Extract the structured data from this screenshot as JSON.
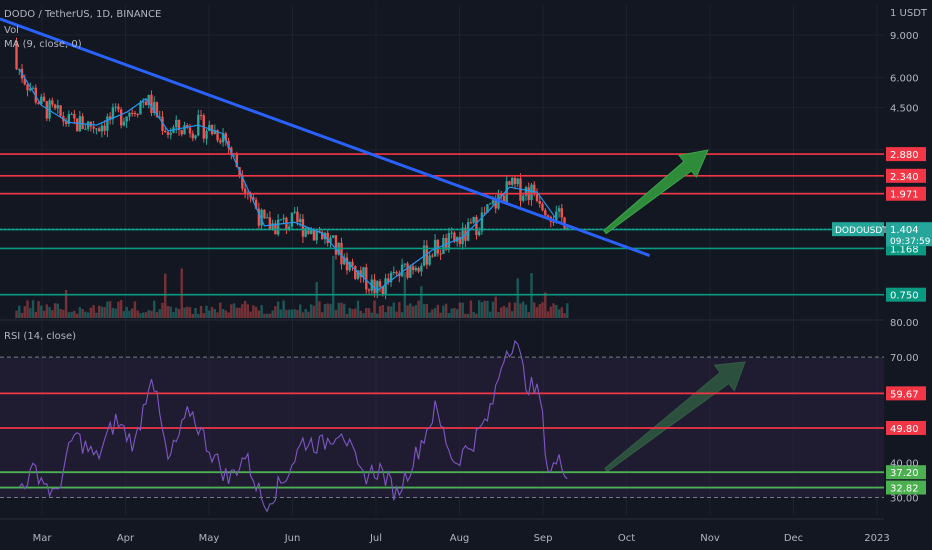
{
  "header": {
    "symbol_line": "DODO / TetherUS, 1D, BINANCE",
    "vol_label": "Vol",
    "ma_label": "MA (9, close, 0)",
    "rsi_label": "RSI (14, close)"
  },
  "price_axis": {
    "unit_label": "1 USDT",
    "ticks": [
      "9.000",
      "6.000",
      "4.500"
    ]
  },
  "price_levels": [
    {
      "value": "2.880",
      "color": "#f23645"
    },
    {
      "value": "2.340",
      "color": "#f23645"
    },
    {
      "value": "1.971",
      "color": "#f23645"
    },
    {
      "value": "1.399",
      "color": "#089981"
    },
    {
      "value": "1.168",
      "color": "#089981"
    },
    {
      "value": "0.750",
      "color": "#089981"
    }
  ],
  "current_price": {
    "ticker": "DODOUSDT",
    "price": "1.404",
    "countdown": "09:37:59",
    "color": "#26a69a"
  },
  "rsi_axis": {
    "ticks": [
      "80.00",
      "70.00",
      "40.00",
      "30.00"
    ]
  },
  "rsi_levels": [
    {
      "value": "59.67",
      "color": "#f23645"
    },
    {
      "value": "49.80",
      "color": "#f23645"
    },
    {
      "value": "37.20",
      "color": "#4caf50"
    },
    {
      "value": "32.82",
      "color": "#4caf50"
    }
  ],
  "time_axis": {
    "labels": [
      "Mar",
      "Apr",
      "May",
      "Jun",
      "Jul",
      "Aug",
      "Sep",
      "Oct",
      "Nov",
      "Dec",
      "2023"
    ]
  },
  "colors": {
    "background": "#131722",
    "up": "#26a69a",
    "down": "#ef5350",
    "ma": "#2196f3",
    "trendline": "#2962ff",
    "rsi_line": "#7e57c2",
    "rsi_band": "#2a2140",
    "arrow": "#2e8b3a",
    "grid": "#1e222d"
  },
  "chart_data": [
    {
      "type": "candlestick",
      "title": "DODO / TetherUS, 1D, BINANCE",
      "scale": "log",
      "ylim": [
        0.6,
        12
      ],
      "x_range": [
        "2022-02-18",
        "2023-01-05"
      ],
      "series": [
        {
          "name": "MA (9, close, 0)",
          "x": [
            "2022-02-25",
            "2022-03-05",
            "2022-03-15",
            "2022-03-25",
            "2022-04-05",
            "2022-04-12",
            "2022-04-20",
            "2022-05-01",
            "2022-05-10",
            "2022-05-15",
            "2022-05-25",
            "2022-06-05",
            "2022-06-15",
            "2022-06-25",
            "2022-07-05",
            "2022-07-15",
            "2022-07-25",
            "2022-08-05",
            "2022-08-15",
            "2022-08-22",
            "2022-09-01",
            "2022-09-08"
          ],
          "values": [
            6.5,
            4.6,
            3.9,
            3.8,
            4.3,
            4.9,
            3.6,
            3.8,
            3.5,
            2.6,
            1.45,
            1.5,
            1.35,
            1.0,
            0.78,
            0.95,
            1.15,
            1.3,
            1.7,
            2.1,
            2.0,
            1.55
          ]
        },
        {
          "name": "Trendline",
          "x": [
            "2022-02-18",
            "2022-10-01"
          ],
          "values": [
            10.5,
            1.05
          ]
        }
      ],
      "levels": [
        2.88,
        2.34,
        1.971,
        1.399,
        1.168,
        0.75
      ],
      "last_price": 1.404
    },
    {
      "type": "line",
      "title": "RSI (14, close)",
      "ylim": [
        25,
        80
      ],
      "x": [
        "2022-02-25",
        "2022-03-03",
        "2022-03-10",
        "2022-03-17",
        "2022-03-25",
        "2022-04-01",
        "2022-04-08",
        "2022-04-14",
        "2022-04-20",
        "2022-04-28",
        "2022-05-05",
        "2022-05-12",
        "2022-05-18",
        "2022-05-25",
        "2022-06-01",
        "2022-06-08",
        "2022-06-15",
        "2022-06-22",
        "2022-06-29",
        "2022-07-06",
        "2022-07-12",
        "2022-07-19",
        "2022-07-26",
        "2022-08-02",
        "2022-08-09",
        "2022-08-15",
        "2022-08-20",
        "2022-08-24",
        "2022-08-28",
        "2022-09-02",
        "2022-09-05",
        "2022-09-09",
        "2022-09-12"
      ],
      "values": [
        33,
        38,
        30,
        48,
        41,
        52,
        45,
        66,
        40,
        55,
        44,
        35,
        42,
        28,
        35,
        46,
        45,
        50,
        36,
        38,
        31,
        42,
        55,
        40,
        46,
        54,
        71,
        75,
        63,
        59,
        38,
        40,
        38
      ],
      "levels": [
        59.67,
        49.8,
        37.2,
        32.82
      ],
      "bands": [
        30,
        70
      ]
    }
  ]
}
